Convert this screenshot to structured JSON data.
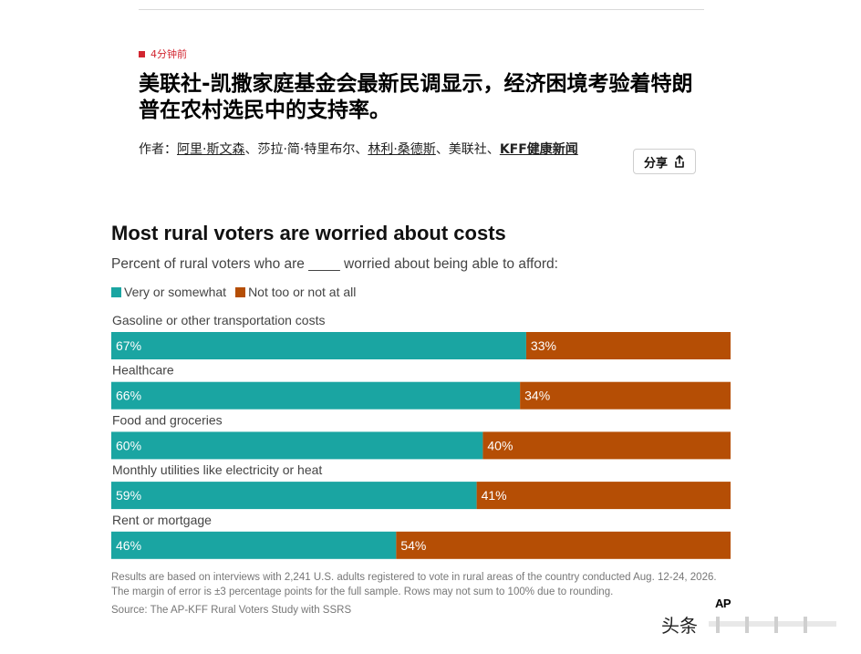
{
  "article": {
    "timestamp": "4分钟前",
    "headline": "美联社-凯撒家庭基金会最新民调显示，经济困境考验着特朗普在农村选民中的支持率。",
    "byline": {
      "prefix": "作者：",
      "author_1": "阿里·斯文森",
      "sep_1": "、莎拉·简·特里布尔、",
      "author_2": "林利·桑德斯",
      "sep_2": "、美联社、",
      "author_3": "KFF健康新闻"
    },
    "share_label": "分享"
  },
  "colors": {
    "very_or_somewhat": "#1aa5a2",
    "not_too_or_not_at_all": "#b54e05",
    "timestamp_red": "#d22630"
  },
  "chart_data": {
    "type": "bar",
    "orientation": "horizontal-stacked",
    "title": "Most rural voters are worried about costs",
    "subtitle": "Percent of rural voters who are ____ worried about being able to afford:",
    "legend_position": "top-left",
    "categories": [
      "Gasoline or other transportation costs",
      "Healthcare",
      "Food and groceries",
      "Monthly utilities like electricity or heat",
      "Rent or mortgage"
    ],
    "series": [
      {
        "name": "Very or somewhat",
        "values": [
          67,
          66,
          60,
          59,
          46
        ],
        "labels": [
          "67%",
          "66%",
          "60%",
          "59%",
          "46%"
        ]
      },
      {
        "name": "Not too or not at all",
        "values": [
          33,
          34,
          40,
          41,
          54
        ],
        "labels": [
          "33%",
          "34%",
          "40%",
          "41%",
          "54%"
        ]
      }
    ],
    "footnote": "Results are based on interviews with 2,241 U.S. adults registered to vote in rural areas of the country conducted Aug. 12-24, 2026. The margin of error is ±3 percentage points for the full sample. Rows may not sum to 100% due to rounding.",
    "source": "Source: The AP-KFF Rural Voters Study with SSRS",
    "publisher_logo": "AP"
  },
  "watermark": {
    "text": "头条"
  }
}
